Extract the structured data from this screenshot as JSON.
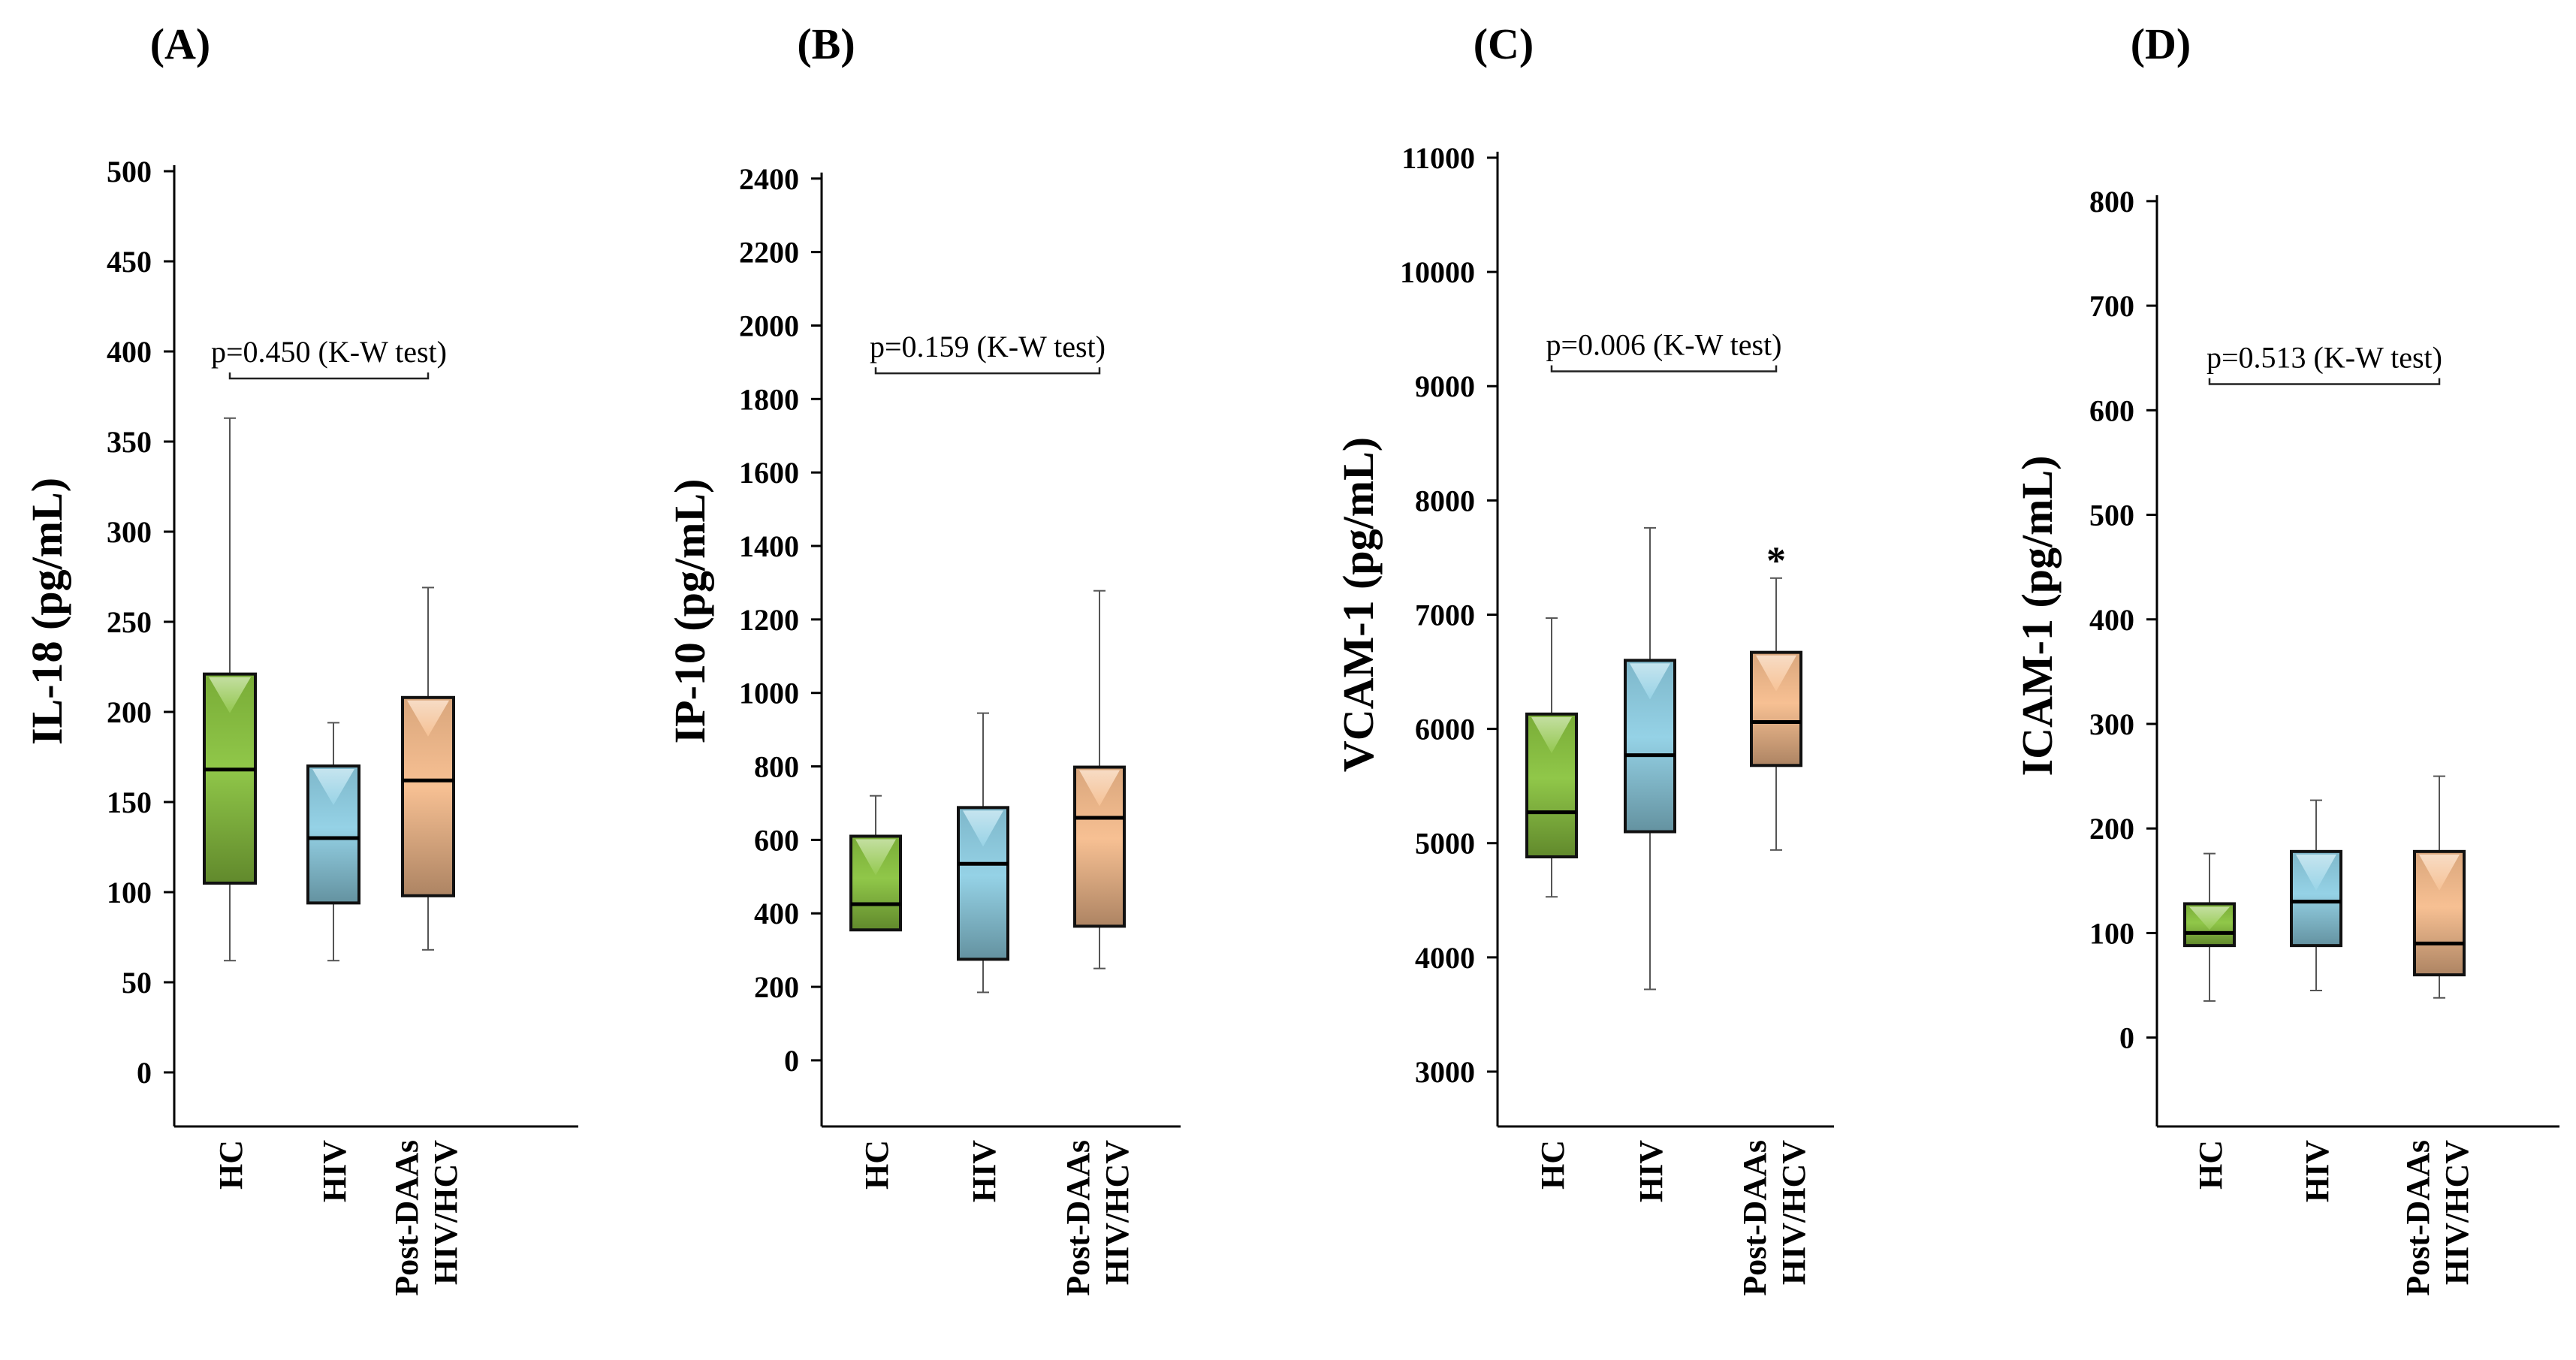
{
  "chart_data": [
    {
      "type": "box",
      "panel": "(A)",
      "ylabel": "IL-18 (pg/mL)",
      "ylim": [
        -30,
        500
      ],
      "yticks": [
        0,
        50,
        100,
        150,
        200,
        250,
        300,
        350,
        400,
        450,
        500
      ],
      "categories": [
        "HC",
        "HIV",
        "Post-DAAs\nHIV/HCV"
      ],
      "boxes": [
        {
          "category": "HC",
          "whisker_low": 62,
          "q1": 105,
          "median": 168,
          "q3": 221,
          "whisker_high": 363
        },
        {
          "category": "HIV",
          "whisker_low": 62,
          "q1": 94,
          "median": 130,
          "q3": 170,
          "whisker_high": 194
        },
        {
          "category": "Post-DAAs\nHIV/HCV",
          "whisker_low": 68,
          "q1": 98,
          "median": 162,
          "q3": 208,
          "whisker_high": 269
        }
      ],
      "annotation": "p=0.450 (K-W test)",
      "annotation_y": 385,
      "outlier_markers": []
    },
    {
      "type": "box",
      "panel": "(B)",
      "ylabel": "IP-10 (pg/mL)",
      "ylim": [
        -180,
        2420
      ],
      "yticks": [
        0,
        200,
        400,
        600,
        800,
        1000,
        1200,
        1400,
        1600,
        1800,
        2000,
        2200,
        2400
      ],
      "categories": [
        "HC",
        "HIV",
        "Post-DAAs\nHIV/HCV"
      ],
      "boxes": [
        {
          "category": "HC",
          "whisker_low": 355,
          "q1": 355,
          "median": 425,
          "q3": 610,
          "whisker_high": 720
        },
        {
          "category": "HIV",
          "whisker_low": 185,
          "q1": 275,
          "median": 535,
          "q3": 688,
          "whisker_high": 945
        },
        {
          "category": "Post-DAAs\nHIV/HCV",
          "whisker_low": 250,
          "q1": 365,
          "median": 660,
          "q3": 798,
          "whisker_high": 1278
        }
      ],
      "annotation": "p=0.159 (K-W test)",
      "annotation_y": 1870,
      "outlier_markers": []
    },
    {
      "type": "box",
      "panel": "(C)",
      "ylabel": "VCAM-1 (pg/mL)",
      "ylim": [
        2520,
        11000
      ],
      "yticks": [
        3000,
        4000,
        5000,
        6000,
        7000,
        8000,
        9000,
        10000,
        11000
      ],
      "categories": [
        "HC",
        "HIV",
        "Post-DAAs\nHIV/HCV"
      ],
      "boxes": [
        {
          "category": "HC",
          "whisker_low": 4530,
          "q1": 4880,
          "median": 5270,
          "q3": 6130,
          "whisker_high": 6970
        },
        {
          "category": "HIV",
          "whisker_low": 3720,
          "q1": 5100,
          "median": 5770,
          "q3": 6600,
          "whisker_high": 7760
        },
        {
          "category": "Post-DAAs\nHIV/HCV",
          "whisker_low": 4940,
          "q1": 5680,
          "median": 6060,
          "q3": 6670,
          "whisker_high": 7320
        }
      ],
      "annotation": "p=0.006 (K-W test)",
      "annotation_y": 9130,
      "outlier_markers": [
        {
          "category": "Post-DAAs\nHIV/HCV",
          "symbol": "*",
          "y": 7560
        }
      ]
    },
    {
      "type": "box",
      "panel": "(D)",
      "ylabel": "ICAM-1 (pg/mL)",
      "ylim": [
        -85,
        820
      ],
      "yticks": [
        0,
        100,
        200,
        300,
        400,
        500,
        600,
        700,
        800
      ],
      "categories": [
        "HC",
        "HIV",
        "Post-DAAs\nHIV/HCV"
      ],
      "boxes": [
        {
          "category": "HC",
          "whisker_low": 35,
          "q1": 88,
          "median": 100,
          "q3": 128,
          "whisker_high": 176
        },
        {
          "category": "HIV",
          "whisker_low": 45,
          "q1": 88,
          "median": 130,
          "q3": 178,
          "whisker_high": 227
        },
        {
          "category": "Post-DAAs\nHIV/HCV",
          "whisker_low": 38,
          "q1": 60,
          "median": 90,
          "q3": 178,
          "whisker_high": 250
        }
      ],
      "annotation": "p=0.513 (K-W test)",
      "annotation_y": 625,
      "outlier_markers": []
    }
  ],
  "colors": {
    "green": "#8ac43f",
    "blue": "#8fd0e5",
    "orange": "#f7bd8d",
    "axis": "#000000",
    "whisker": "#555555"
  }
}
